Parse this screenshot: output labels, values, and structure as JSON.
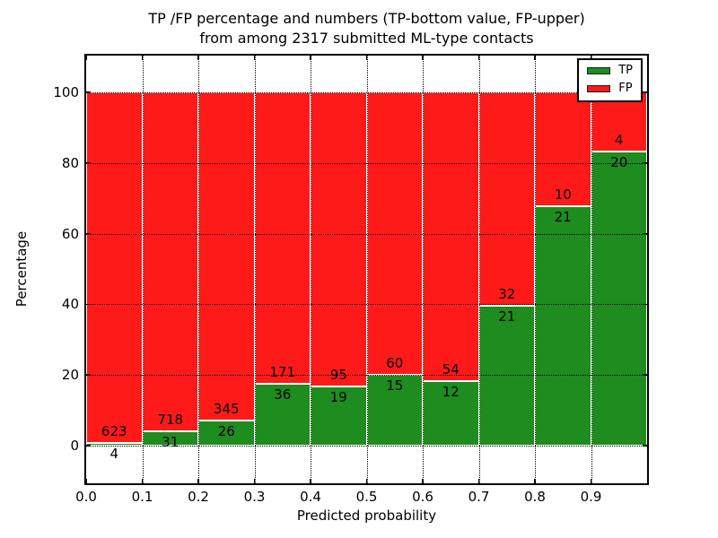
{
  "figure": {
    "title_line1": "TP /FP percentage and numbers (TP-bottom value, FP-upper)",
    "title_line2": "from among 2317 submitted ML-type contacts",
    "xlabel": "Predicted probability",
    "ylabel": "Percentage"
  },
  "legend": {
    "items": [
      {
        "label": "TP",
        "color": "#1e8c1e"
      },
      {
        "label": "FP",
        "color": "#ff1a1a"
      }
    ]
  },
  "chart_data": {
    "type": "bar",
    "stacked": true,
    "title": "TP /FP percentage and numbers (TP-bottom value, FP-upper) from among 2317 submitted ML-type contacts",
    "xlabel": "Predicted probability",
    "ylabel": "Percentage",
    "total_submitted": 2317,
    "bin_width": 0.1,
    "bin_starts": [
      0.0,
      0.1,
      0.2,
      0.3,
      0.4,
      0.5,
      0.6,
      0.7,
      0.8,
      0.9
    ],
    "categories": [
      "0.0-0.1",
      "0.1-0.2",
      "0.2-0.3",
      "0.3-0.4",
      "0.4-0.5",
      "0.5-0.6",
      "0.6-0.7",
      "0.7-0.8",
      "0.8-0.9",
      "0.9-1.0"
    ],
    "series": [
      {
        "name": "TP",
        "color": "#1e8c1e",
        "counts": [
          4,
          31,
          26,
          36,
          19,
          15,
          12,
          21,
          21,
          20
        ],
        "pct": [
          0.638,
          4.139,
          7.008,
          17.391,
          16.667,
          20.0,
          18.182,
          39.623,
          67.742,
          83.333
        ]
      },
      {
        "name": "FP",
        "color": "#ff1a1a",
        "counts": [
          623,
          718,
          345,
          171,
          95,
          60,
          54,
          32,
          10,
          4
        ],
        "pct": [
          99.362,
          95.861,
          92.992,
          82.609,
          83.333,
          80.0,
          81.818,
          60.377,
          32.258,
          16.667
        ]
      }
    ],
    "x_ticks": [
      "0.0",
      "0.1",
      "0.2",
      "0.3",
      "0.4",
      "0.5",
      "0.6",
      "0.7",
      "0.8",
      "0.9"
    ],
    "y_ticks": [
      0,
      20,
      40,
      60,
      80,
      100
    ],
    "xlim": [
      0.0,
      1.0
    ],
    "ylim": [
      -10.7,
      110.4
    ],
    "grid": true,
    "legend_position": "upper right"
  }
}
